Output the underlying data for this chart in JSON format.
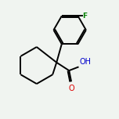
{
  "background_color": "#f0f4f0",
  "bond_color": "#000000",
  "bond_width": 1.4,
  "F_color": "#008000",
  "O_color": "#dd0000",
  "OH_color": "#0000cc",
  "fig_width": 1.52,
  "fig_height": 1.52,
  "dpi": 100,
  "xlim": [
    0.0,
    8.0
  ],
  "ylim": [
    1.5,
    8.5
  ]
}
